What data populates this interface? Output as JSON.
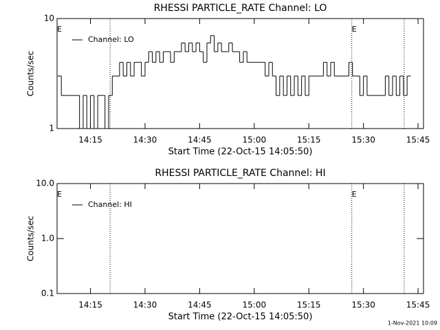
{
  "chart_data": [
    {
      "type": "line",
      "title": "RHESSI PARTICLE_RATE Channel: LO",
      "xlabel": "Start Time (22-Oct-15 14:05:50)",
      "ylabel": "Counts/sec",
      "log_y": true,
      "step": true,
      "xlim": [
        845.83,
        946.5
      ],
      "xticks": [
        {
          "value": 855,
          "label": "14:15"
        },
        {
          "value": 870,
          "label": "14:30"
        },
        {
          "value": 885,
          "label": "14:45"
        },
        {
          "value": 900,
          "label": "15:00"
        },
        {
          "value": 915,
          "label": "15:15"
        },
        {
          "value": 930,
          "label": "15:30"
        },
        {
          "value": 945,
          "label": "15:45"
        }
      ],
      "ylim": [
        1,
        10
      ],
      "yticks": [
        1,
        10
      ],
      "legend": "upper left",
      "event_lines": [
        860.4,
        926.8,
        941.2
      ],
      "annotations": [
        {
          "text": "E",
          "x": 845.83
        },
        {
          "text": "E",
          "x": 926.8
        }
      ],
      "x": [
        846,
        847,
        848,
        849,
        850,
        851,
        852,
        853,
        854,
        855,
        856,
        857,
        858,
        859,
        860,
        861,
        862,
        863,
        864,
        865,
        866,
        867,
        868,
        869,
        870,
        871,
        872,
        873,
        874,
        875,
        876,
        877,
        878,
        879,
        880,
        881,
        882,
        883,
        884,
        885,
        886,
        887,
        888,
        889,
        890,
        891,
        892,
        893,
        894,
        895,
        896,
        897,
        898,
        899,
        900,
        901,
        902,
        903,
        904,
        905,
        906,
        907,
        908,
        909,
        910,
        911,
        912,
        913,
        914,
        915,
        916,
        917,
        918,
        919,
        920,
        921,
        922,
        923,
        924,
        925,
        926,
        927,
        928,
        929,
        930,
        931,
        932,
        933,
        934,
        935,
        936,
        937,
        938,
        939,
        940,
        941,
        942
      ],
      "series": [
        {
          "name": "Channel: LO",
          "color": "#000000",
          "values": [
            3,
            2,
            2,
            2,
            2,
            2,
            1,
            2,
            1,
            2,
            1,
            2,
            2,
            1,
            2,
            3,
            3,
            4,
            3,
            4,
            3,
            4,
            4,
            3,
            4,
            5,
            4,
            5,
            4,
            5,
            5,
            4,
            5,
            5,
            6,
            5,
            6,
            5,
            6,
            5,
            4,
            6,
            7,
            5,
            6,
            5,
            5,
            6,
            5,
            5,
            4,
            5,
            4,
            4,
            4,
            4,
            4,
            3,
            4,
            3,
            2,
            3,
            2,
            3,
            2,
            3,
            2,
            3,
            2,
            3,
            3,
            3,
            3,
            4,
            3,
            4,
            3,
            3,
            3,
            3,
            4,
            3,
            3,
            2,
            3,
            2,
            2,
            2,
            2,
            2,
            3,
            2,
            3,
            2,
            3,
            2,
            3
          ]
        }
      ]
    },
    {
      "type": "line",
      "title": "RHESSI PARTICLE_RATE Channel: HI",
      "xlabel": "Start Time (22-Oct-15 14:05:50)",
      "ylabel": "Counts/sec",
      "log_y": true,
      "step": true,
      "xlim": [
        845.83,
        946.5
      ],
      "xticks": [
        {
          "value": 855,
          "label": "14:15"
        },
        {
          "value": 870,
          "label": "14:30"
        },
        {
          "value": 885,
          "label": "14:45"
        },
        {
          "value": 900,
          "label": "15:00"
        },
        {
          "value": 915,
          "label": "15:15"
        },
        {
          "value": 930,
          "label": "15:30"
        },
        {
          "value": 945,
          "label": "15:45"
        }
      ],
      "ylim": [
        0.1,
        10
      ],
      "yticks": [
        {
          "value": 0.1,
          "label": "0.1"
        },
        {
          "value": 1,
          "label": "1.0"
        },
        {
          "value": 10,
          "label": "10.0"
        }
      ],
      "legend": "upper left",
      "event_lines": [
        860.4,
        926.8,
        941.2
      ],
      "annotations": [
        {
          "text": "E",
          "x": 845.83
        },
        {
          "text": "E",
          "x": 926.8
        }
      ],
      "x": [],
      "series": [
        {
          "name": "Channel: HI",
          "color": "#000000",
          "values": []
        }
      ]
    }
  ],
  "footer": "1-Nov-2021 10:09"
}
